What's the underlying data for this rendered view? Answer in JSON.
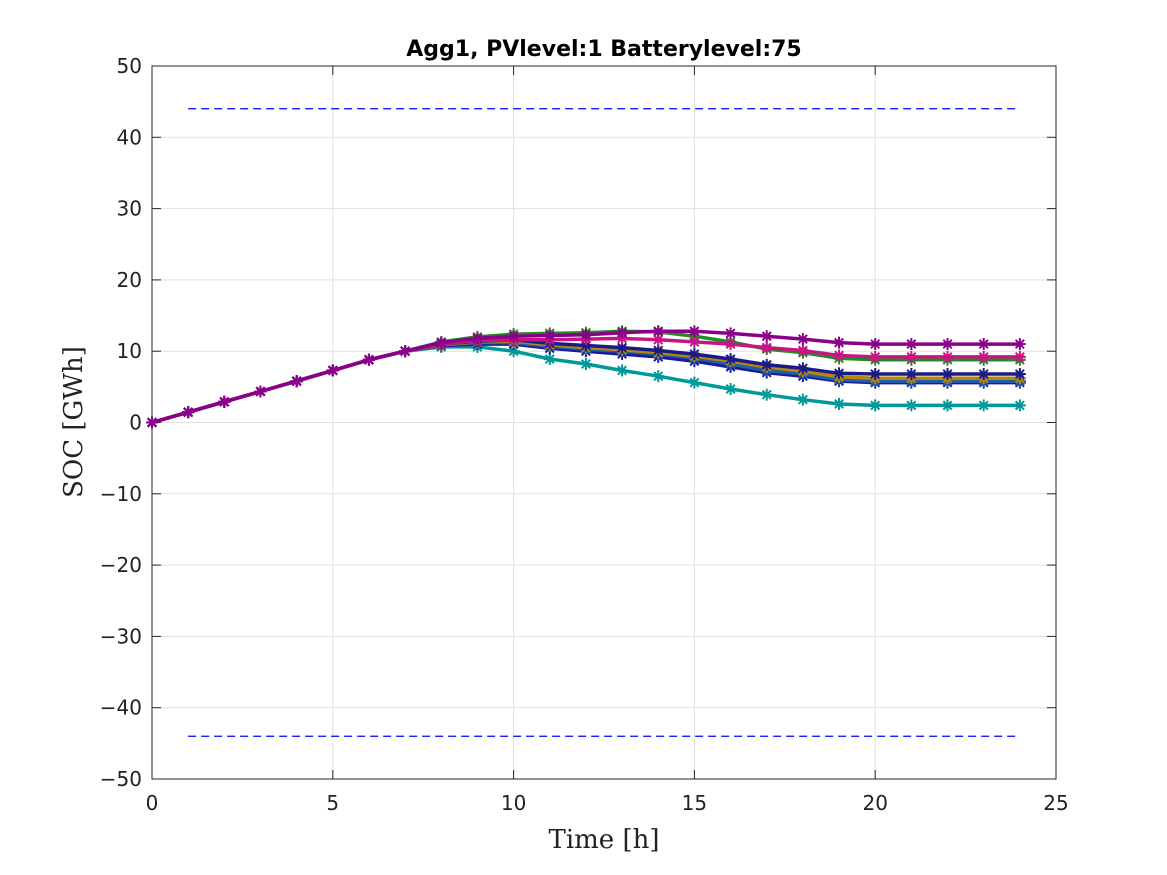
{
  "chart_data": {
    "type": "line",
    "title": "Agg1, PVlevel:1 Batterylevel:75",
    "xlabel": "Time [h]",
    "ylabel": "SOC [GWh]",
    "xlim": [
      0,
      25
    ],
    "ylim": [
      -50,
      50
    ],
    "xticks": [
      0,
      5,
      10,
      15,
      20,
      25
    ],
    "yticks": [
      -50,
      -40,
      -30,
      -20,
      -10,
      0,
      10,
      20,
      30,
      40,
      50
    ],
    "xtick_labels": [
      "0",
      "5",
      "10",
      "15",
      "20",
      "25"
    ],
    "ytick_labels": [
      "−50",
      "−40",
      "−30",
      "−20",
      "−10",
      "0",
      "10",
      "20",
      "30",
      "40",
      "50"
    ],
    "grid": true,
    "marker": "asterisk",
    "x": [
      0,
      1,
      2,
      3,
      4,
      5,
      6,
      7,
      8,
      9,
      10,
      11,
      12,
      13,
      14,
      15,
      16,
      17,
      18,
      19,
      20,
      21,
      22,
      23,
      24
    ],
    "series": [
      {
        "color": "#009999",
        "values": [
          0,
          1.45,
          2.9,
          4.35,
          5.8,
          7.3,
          8.8,
          10.0,
          10.6,
          10.6,
          10.0,
          8.9,
          8.2,
          7.3,
          6.5,
          5.6,
          4.7,
          3.9,
          3.2,
          2.6,
          2.4,
          2.4,
          2.4,
          2.4,
          2.4
        ]
      },
      {
        "color": "#1a1a9a",
        "values": [
          0,
          1.45,
          2.9,
          4.35,
          5.8,
          7.3,
          8.8,
          10.0,
          10.8,
          11.0,
          11.0,
          10.4,
          10.0,
          9.6,
          9.2,
          8.6,
          7.8,
          7.0,
          6.5,
          5.8,
          5.6,
          5.6,
          5.6,
          5.6,
          5.6
        ]
      },
      {
        "color": "#1f5ea8",
        "values": [
          0,
          1.45,
          2.9,
          4.35,
          5.8,
          7.3,
          8.8,
          10.0,
          10.9,
          11.2,
          11.2,
          10.7,
          10.3,
          10.0,
          9.6,
          9.0,
          8.2,
          7.3,
          6.8,
          6.0,
          5.8,
          5.8,
          5.8,
          5.8,
          5.8
        ]
      },
      {
        "color": "#b8860b",
        "values": [
          0,
          1.45,
          2.9,
          4.35,
          5.8,
          7.3,
          8.8,
          10.0,
          10.9,
          11.3,
          11.4,
          10.9,
          10.5,
          10.2,
          9.8,
          9.3,
          8.6,
          7.8,
          7.2,
          6.4,
          6.2,
          6.2,
          6.2,
          6.2,
          6.2
        ]
      },
      {
        "color": "#1a1a8a",
        "values": [
          0,
          1.45,
          2.9,
          4.35,
          5.8,
          7.3,
          8.8,
          10.0,
          11.0,
          11.4,
          11.6,
          11.1,
          10.8,
          10.5,
          10.1,
          9.6,
          8.9,
          8.1,
          7.6,
          6.9,
          6.8,
          6.8,
          6.8,
          6.8,
          6.8
        ]
      },
      {
        "color": "#228b22",
        "values": [
          0,
          1.45,
          2.9,
          4.35,
          5.8,
          7.3,
          8.8,
          10.0,
          11.3,
          12.0,
          12.4,
          12.5,
          12.6,
          12.8,
          12.7,
          12.1,
          11.3,
          10.3,
          9.8,
          9.0,
          8.8,
          8.8,
          8.8,
          8.8,
          8.8
        ]
      },
      {
        "color": "#c71585",
        "values": [
          0,
          1.45,
          2.9,
          4.35,
          5.8,
          7.3,
          8.8,
          10.0,
          11.0,
          11.5,
          11.6,
          11.6,
          11.7,
          11.8,
          11.6,
          11.3,
          11.0,
          10.5,
          10.1,
          9.4,
          9.2,
          9.2,
          9.2,
          9.2,
          9.2
        ]
      },
      {
        "color": "#8b008b",
        "values": [
          0,
          1.45,
          2.9,
          4.35,
          5.8,
          7.3,
          8.8,
          10.0,
          11.2,
          11.8,
          12.1,
          12.2,
          12.3,
          12.6,
          12.8,
          12.8,
          12.5,
          12.1,
          11.7,
          11.2,
          11.0,
          11.0,
          11.0,
          11.0,
          11.0
        ]
      }
    ],
    "reference_lines": [
      {
        "color": "#0000ff",
        "style": "dashed",
        "x": [
          1,
          24
        ],
        "values": [
          44,
          44
        ]
      },
      {
        "color": "#0000ff",
        "style": "dashed",
        "x": [
          1,
          24
        ],
        "values": [
          -44,
          -44
        ]
      }
    ]
  }
}
